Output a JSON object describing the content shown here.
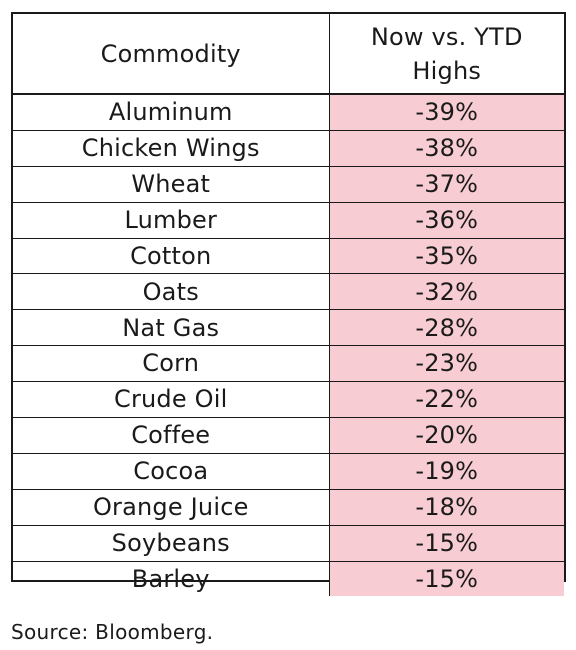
{
  "chart_data": {
    "type": "table",
    "columns": [
      "Commodity",
      "Now vs. YTD\nHighs"
    ],
    "rows": [
      {
        "commodity": "Aluminum",
        "value": "-39%"
      },
      {
        "commodity": "Chicken Wings",
        "value": "-38%"
      },
      {
        "commodity": "Wheat",
        "value": "-37%"
      },
      {
        "commodity": "Lumber",
        "value": "-36%"
      },
      {
        "commodity": "Cotton",
        "value": "-35%"
      },
      {
        "commodity": "Oats",
        "value": "-32%"
      },
      {
        "commodity": "Nat Gas",
        "value": "-28%"
      },
      {
        "commodity": "Corn",
        "value": "-23%"
      },
      {
        "commodity": "Crude Oil",
        "value": "-22%"
      },
      {
        "commodity": "Coffee",
        "value": "-20%"
      },
      {
        "commodity": "Cocoa",
        "value": "-19%"
      },
      {
        "commodity": "Orange Juice",
        "value": "-18%"
      },
      {
        "commodity": "Soybeans",
        "value": "-15%"
      },
      {
        "commodity": "Barley",
        "value": "-15%"
      }
    ],
    "value_cell_color": "#f7cdd3",
    "border_color": "#1a1a1a"
  },
  "source": "Source: Bloomberg."
}
